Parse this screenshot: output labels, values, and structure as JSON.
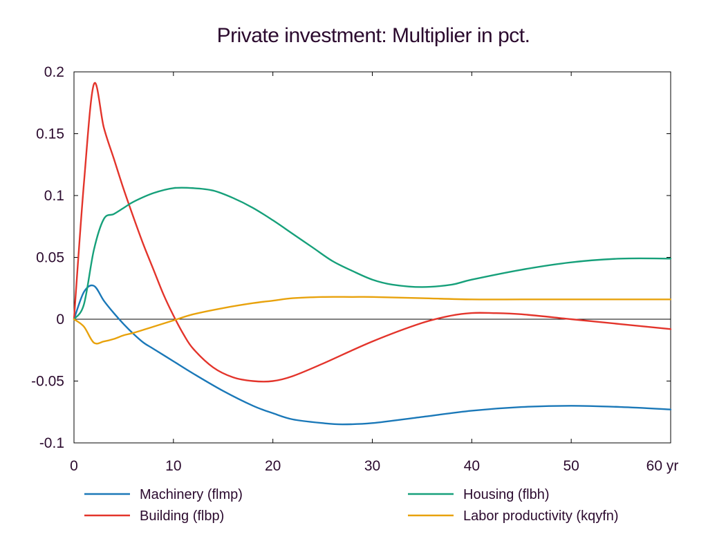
{
  "chart_data": {
    "type": "line",
    "title": "Private investment: Multiplier in pct.",
    "xlabel": "",
    "ylabel": "",
    "xlim": [
      0,
      60
    ],
    "ylim": [
      -0.1,
      0.2
    ],
    "x_ticks": [
      "0",
      "10",
      "20",
      "30",
      "40",
      "50",
      "60 yr"
    ],
    "x_tick_values": [
      0,
      10,
      20,
      30,
      40,
      50,
      60
    ],
    "y_ticks": [
      "0.2",
      "0.15",
      "0.1",
      "0.05",
      "0",
      "-0.05",
      "-0.1"
    ],
    "y_tick_values": [
      0.2,
      0.15,
      0.1,
      0.05,
      0,
      -0.05,
      -0.1
    ],
    "grid": false,
    "zero_line": true,
    "legend_position": "bottom",
    "series": [
      {
        "name": "Machinery (flmp)",
        "color": "#1a78b8",
        "x": [
          0,
          1,
          2,
          3,
          4,
          5,
          6,
          7,
          8,
          10,
          12,
          15,
          18,
          20,
          22,
          25,
          27,
          30,
          35,
          40,
          45,
          50,
          55,
          60
        ],
        "y": [
          0,
          0.022,
          0.027,
          0.015,
          0.005,
          -0.004,
          -0.012,
          -0.019,
          -0.024,
          -0.034,
          -0.044,
          -0.058,
          -0.07,
          -0.076,
          -0.081,
          -0.084,
          -0.085,
          -0.084,
          -0.079,
          -0.074,
          -0.071,
          -0.07,
          -0.071,
          -0.073
        ]
      },
      {
        "name": "Building (flbp)",
        "color": "#e3342b",
        "x": [
          0,
          1,
          2,
          3,
          4,
          5,
          6,
          7,
          8,
          9,
          10,
          11,
          12,
          14,
          16,
          18,
          20,
          22,
          25,
          30,
          35,
          38,
          40,
          42,
          45,
          50,
          55,
          60
        ],
        "y": [
          0,
          0.11,
          0.19,
          0.155,
          0.13,
          0.105,
          0.082,
          0.06,
          0.04,
          0.02,
          0.003,
          -0.012,
          -0.024,
          -0.039,
          -0.047,
          -0.05,
          -0.05,
          -0.046,
          -0.036,
          -0.018,
          -0.003,
          0.003,
          0.005,
          0.005,
          0.004,
          0.0,
          -0.004,
          -0.008
        ]
      },
      {
        "name": "Housing (flbh)",
        "color": "#16a07a",
        "x": [
          0,
          1,
          2,
          3,
          4,
          5,
          6,
          8,
          10,
          12,
          14,
          16,
          18,
          20,
          22,
          24,
          26,
          28,
          30,
          32,
          35,
          38,
          40,
          45,
          50,
          55,
          60
        ],
        "y": [
          0,
          0.012,
          0.056,
          0.081,
          0.085,
          0.09,
          0.095,
          0.102,
          0.106,
          0.106,
          0.104,
          0.098,
          0.09,
          0.08,
          0.069,
          0.058,
          0.047,
          0.039,
          0.032,
          0.028,
          0.026,
          0.028,
          0.032,
          0.04,
          0.046,
          0.049,
          0.049
        ]
      },
      {
        "name": "Labor productivity (kqyfn)",
        "color": "#e8a20c",
        "x": [
          0,
          1,
          2,
          3,
          4,
          5,
          6,
          8,
          10,
          12,
          15,
          18,
          20,
          22,
          25,
          28,
          30,
          35,
          40,
          45,
          50,
          55,
          60
        ],
        "y": [
          0,
          -0.006,
          -0.019,
          -0.018,
          -0.016,
          -0.013,
          -0.011,
          -0.006,
          -0.001,
          0.004,
          0.009,
          0.013,
          0.015,
          0.017,
          0.018,
          0.018,
          0.018,
          0.017,
          0.016,
          0.016,
          0.016,
          0.016,
          0.016
        ]
      }
    ]
  }
}
